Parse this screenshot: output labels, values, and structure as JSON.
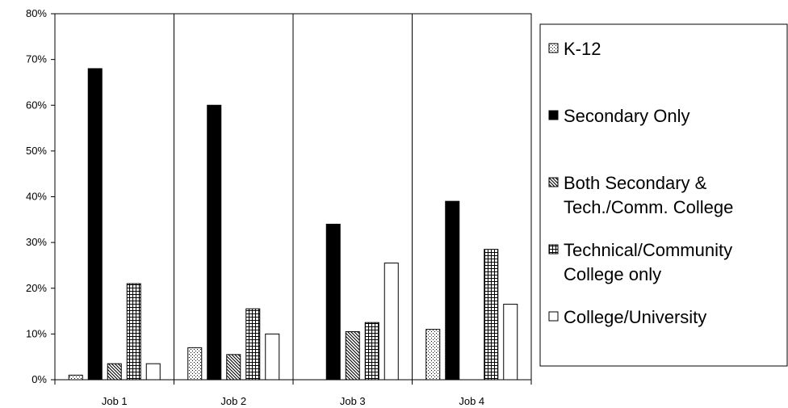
{
  "chart_data": {
    "type": "bar",
    "title": "",
    "xlabel": "",
    "ylabel": "",
    "categories": [
      "Job 1",
      "Job 2",
      "Job 3",
      "Job 4"
    ],
    "ylim": [
      0,
      80
    ],
    "y_ticks": [
      0,
      10,
      20,
      30,
      40,
      50,
      60,
      70,
      80
    ],
    "y_tick_labels": [
      "0%",
      "10%",
      "20%",
      "30%",
      "40%",
      "50%",
      "60%",
      "70%",
      "80%"
    ],
    "grid": "vertical lines between categories",
    "legend_position": "right",
    "series": [
      {
        "name": "K-12",
        "pattern": "dots",
        "values": [
          1,
          7,
          0,
          11
        ]
      },
      {
        "name": "Secondary Only",
        "pattern": "solid-black",
        "values": [
          68,
          60,
          34,
          39
        ]
      },
      {
        "name": "Both Secondary & Tech./Comm. College",
        "legend_lines": [
          "Both Secondary &",
          "Tech./Comm. College"
        ],
        "pattern": "diagonal-hatch",
        "values": [
          3.5,
          5.5,
          10.5,
          0
        ]
      },
      {
        "name": "Technical/Community College only",
        "legend_lines": [
          "Technical/Community",
          "College only"
        ],
        "pattern": "grid",
        "values": [
          21,
          15.5,
          12.5,
          28.5
        ]
      },
      {
        "name": "College/University",
        "pattern": "white",
        "values": [
          3.5,
          10,
          25.5,
          16.5
        ]
      }
    ]
  }
}
